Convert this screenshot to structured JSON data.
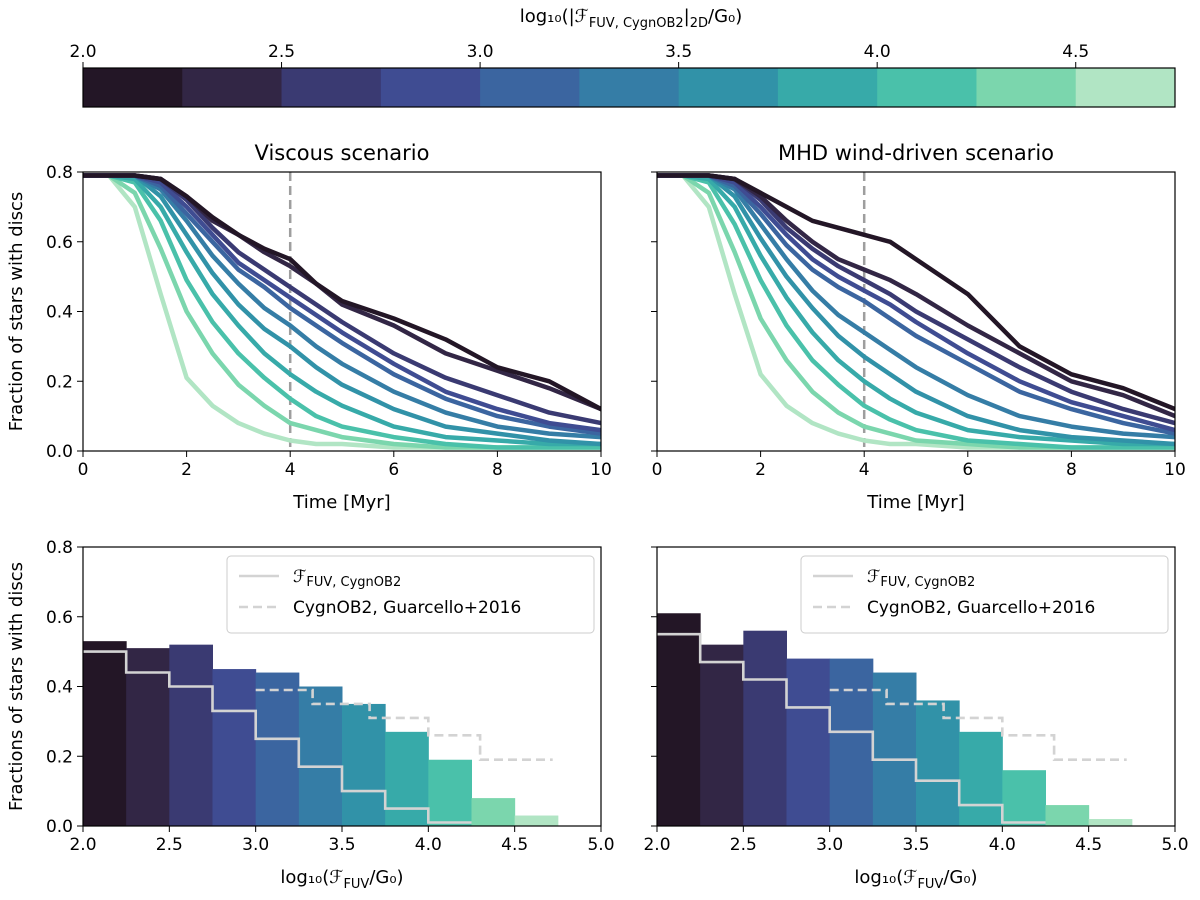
{
  "palette": [
    "#231626",
    "#322645",
    "#3a3a72",
    "#3f4c92",
    "#3b65a0",
    "#357da6",
    "#3192a8",
    "#37aaa9",
    "#4ac1aa",
    "#7bd6ad",
    "#b1e5c4"
  ],
  "colorbar": {
    "label": "log₁₀(|ℱ",
    "label_sub": "FUV, CygnOB2",
    "label_mid": "|",
    "label_sub2": "2D",
    "label_end": "/G₀)",
    "range": [
      2.0,
      4.75
    ],
    "bins": [
      2.0,
      2.25,
      2.5,
      2.75,
      3.0,
      3.25,
      3.5,
      3.75,
      4.0,
      4.25,
      4.5,
      4.75
    ],
    "ticks": [
      "2.0",
      "2.5",
      "3.0",
      "3.5",
      "4.0",
      "4.5"
    ]
  },
  "chart_data": [
    {
      "id": "top-left",
      "type": "line",
      "title": "Viscous scenario",
      "xlabel": "Time [Myr]",
      "ylabel": "Fraction of stars with discs",
      "xlim": [
        0,
        10
      ],
      "ylim": [
        0,
        0.8
      ],
      "xticks": [
        "0",
        "2",
        "4",
        "6",
        "8",
        "10"
      ],
      "yticks": [
        "0.0",
        "0.2",
        "0.4",
        "0.6",
        "0.8"
      ],
      "vline_x": 4,
      "x": [
        0,
        0.5,
        1.0,
        1.5,
        2.0,
        2.5,
        3.0,
        3.5,
        4.0,
        4.5,
        5.0,
        6.0,
        7.0,
        8.0,
        9.0,
        10.0
      ],
      "series": [
        {
          "name": "2.125",
          "values": [
            0.79,
            0.79,
            0.79,
            0.78,
            0.73,
            0.67,
            0.62,
            0.58,
            0.55,
            0.48,
            0.43,
            0.38,
            0.32,
            0.24,
            0.2,
            0.12
          ]
        },
        {
          "name": "2.375",
          "values": [
            0.79,
            0.79,
            0.79,
            0.78,
            0.73,
            0.66,
            0.62,
            0.57,
            0.53,
            0.48,
            0.42,
            0.36,
            0.28,
            0.23,
            0.18,
            0.12
          ]
        },
        {
          "name": "2.625",
          "values": [
            0.79,
            0.79,
            0.79,
            0.78,
            0.72,
            0.64,
            0.57,
            0.52,
            0.47,
            0.42,
            0.37,
            0.28,
            0.21,
            0.16,
            0.11,
            0.08
          ]
        },
        {
          "name": "2.875",
          "values": [
            0.79,
            0.79,
            0.79,
            0.77,
            0.7,
            0.62,
            0.54,
            0.49,
            0.44,
            0.39,
            0.34,
            0.25,
            0.17,
            0.12,
            0.08,
            0.06
          ]
        },
        {
          "name": "3.125",
          "values": [
            0.79,
            0.79,
            0.79,
            0.76,
            0.68,
            0.6,
            0.52,
            0.47,
            0.41,
            0.36,
            0.31,
            0.22,
            0.15,
            0.1,
            0.07,
            0.05
          ]
        },
        {
          "name": "3.375",
          "values": [
            0.79,
            0.79,
            0.79,
            0.75,
            0.66,
            0.56,
            0.48,
            0.41,
            0.36,
            0.3,
            0.25,
            0.17,
            0.11,
            0.07,
            0.05,
            0.04
          ]
        },
        {
          "name": "3.625",
          "values": [
            0.79,
            0.79,
            0.79,
            0.73,
            0.62,
            0.51,
            0.42,
            0.35,
            0.3,
            0.24,
            0.19,
            0.12,
            0.07,
            0.05,
            0.03,
            0.02
          ]
        },
        {
          "name": "3.875",
          "values": [
            0.79,
            0.79,
            0.78,
            0.7,
            0.57,
            0.45,
            0.36,
            0.28,
            0.22,
            0.17,
            0.13,
            0.07,
            0.04,
            0.03,
            0.02,
            0.02
          ]
        },
        {
          "name": "4.125",
          "values": [
            0.79,
            0.79,
            0.77,
            0.66,
            0.49,
            0.37,
            0.28,
            0.21,
            0.15,
            0.1,
            0.07,
            0.04,
            0.02,
            0.01,
            0.01,
            0.01
          ]
        },
        {
          "name": "4.375",
          "values": [
            0.79,
            0.79,
            0.74,
            0.58,
            0.4,
            0.28,
            0.19,
            0.13,
            0.08,
            0.06,
            0.04,
            0.02,
            0.01,
            0.01,
            0.01,
            0.01
          ]
        },
        {
          "name": "4.625",
          "values": [
            0.79,
            0.79,
            0.7,
            0.45,
            0.21,
            0.13,
            0.08,
            0.05,
            0.03,
            0.02,
            0.02,
            0.01,
            0.01,
            0.01,
            0.01,
            0.01
          ]
        }
      ]
    },
    {
      "id": "top-right",
      "type": "line",
      "title": "MHD wind-driven scenario",
      "xlabel": "Time [Myr]",
      "ylabel": "",
      "xlim": [
        0,
        10
      ],
      "ylim": [
        0,
        0.8
      ],
      "xticks": [
        "0",
        "2",
        "4",
        "6",
        "8",
        "10"
      ],
      "yticks": [
        "",
        "",
        "",
        "",
        ""
      ],
      "vline_x": 4,
      "x": [
        0,
        0.5,
        1.0,
        1.5,
        2.0,
        2.5,
        3.0,
        3.5,
        4.0,
        4.5,
        5.0,
        6.0,
        7.0,
        8.0,
        9.0,
        10.0
      ],
      "series": [
        {
          "name": "2.125",
          "values": [
            0.79,
            0.79,
            0.79,
            0.78,
            0.74,
            0.7,
            0.66,
            0.64,
            0.62,
            0.6,
            0.55,
            0.45,
            0.3,
            0.22,
            0.18,
            0.12
          ]
        },
        {
          "name": "2.375",
          "values": [
            0.79,
            0.79,
            0.79,
            0.78,
            0.73,
            0.66,
            0.6,
            0.55,
            0.52,
            0.49,
            0.45,
            0.36,
            0.28,
            0.2,
            0.16,
            0.1
          ]
        },
        {
          "name": "2.625",
          "values": [
            0.79,
            0.79,
            0.79,
            0.78,
            0.72,
            0.64,
            0.58,
            0.53,
            0.49,
            0.45,
            0.4,
            0.32,
            0.24,
            0.17,
            0.12,
            0.08
          ]
        },
        {
          "name": "2.875",
          "values": [
            0.79,
            0.79,
            0.79,
            0.77,
            0.7,
            0.62,
            0.55,
            0.5,
            0.46,
            0.42,
            0.37,
            0.28,
            0.2,
            0.14,
            0.1,
            0.06
          ]
        },
        {
          "name": "3.125",
          "values": [
            0.79,
            0.79,
            0.79,
            0.76,
            0.68,
            0.59,
            0.52,
            0.47,
            0.43,
            0.38,
            0.33,
            0.25,
            0.17,
            0.12,
            0.08,
            0.05
          ]
        },
        {
          "name": "3.375",
          "values": [
            0.79,
            0.79,
            0.79,
            0.75,
            0.65,
            0.55,
            0.46,
            0.39,
            0.34,
            0.29,
            0.24,
            0.16,
            0.1,
            0.07,
            0.05,
            0.04
          ]
        },
        {
          "name": "3.625",
          "values": [
            0.79,
            0.79,
            0.79,
            0.73,
            0.61,
            0.5,
            0.41,
            0.33,
            0.27,
            0.22,
            0.17,
            0.1,
            0.06,
            0.04,
            0.03,
            0.02
          ]
        },
        {
          "name": "3.875",
          "values": [
            0.79,
            0.79,
            0.78,
            0.7,
            0.56,
            0.44,
            0.34,
            0.26,
            0.2,
            0.15,
            0.11,
            0.06,
            0.04,
            0.03,
            0.02,
            0.02
          ]
        },
        {
          "name": "4.125",
          "values": [
            0.79,
            0.79,
            0.77,
            0.65,
            0.49,
            0.36,
            0.26,
            0.19,
            0.13,
            0.09,
            0.06,
            0.03,
            0.02,
            0.01,
            0.01,
            0.01
          ]
        },
        {
          "name": "4.375",
          "values": [
            0.79,
            0.79,
            0.74,
            0.57,
            0.38,
            0.26,
            0.17,
            0.11,
            0.07,
            0.05,
            0.03,
            0.02,
            0.01,
            0.01,
            0.01,
            0.01
          ]
        },
        {
          "name": "4.625",
          "values": [
            0.79,
            0.79,
            0.7,
            0.45,
            0.22,
            0.13,
            0.08,
            0.05,
            0.03,
            0.02,
            0.02,
            0.01,
            0.01,
            0.01,
            0.01,
            0.01
          ]
        }
      ]
    },
    {
      "id": "bottom-left",
      "type": "bar",
      "xlabel": "log₁₀(ℱ",
      "xlabel_sub": "FUV",
      "xlabel_end": "/G₀)",
      "ylabel": "Fractions of stars with discs",
      "xlim": [
        2.0,
        5.0
      ],
      "ylim": [
        0,
        0.8
      ],
      "xticks": [
        "2.0",
        "2.5",
        "3.0",
        "3.5",
        "4.0",
        "4.5",
        "5.0"
      ],
      "yticks": [
        "0.0",
        "0.2",
        "0.4",
        "0.6",
        "0.8"
      ],
      "bin_edges": [
        2.0,
        2.25,
        2.5,
        2.75,
        3.0,
        3.25,
        3.5,
        3.75,
        4.0,
        4.25,
        4.5,
        4.75
      ],
      "values": [
        0.53,
        0.51,
        0.52,
        0.45,
        0.44,
        0.4,
        0.35,
        0.27,
        0.19,
        0.08,
        0.03
      ],
      "step_solid": {
        "edges": [
          2.0,
          2.25,
          2.5,
          2.75,
          3.0,
          3.25,
          3.5,
          3.75,
          4.0,
          4.25
        ],
        "values": [
          0.5,
          0.44,
          0.4,
          0.33,
          0.25,
          0.17,
          0.1,
          0.05,
          0.01
        ]
      },
      "step_dashed": {
        "edges": [
          3.0,
          3.33,
          3.66,
          4.0,
          4.3,
          4.72
        ],
        "values": [
          0.39,
          0.35,
          0.31,
          0.26,
          0.19
        ]
      },
      "legend": [
        {
          "label": "ℱ",
          "label_sub": "FUV, CygnOB2",
          "style": "solid"
        },
        {
          "label": "CygnOB2, Guarcello+2016",
          "style": "dashed"
        }
      ]
    },
    {
      "id": "bottom-right",
      "type": "bar",
      "xlabel": "log₁₀(ℱ",
      "xlabel_sub": "FUV",
      "xlabel_end": "/G₀)",
      "ylabel": "",
      "xlim": [
        2.0,
        5.0
      ],
      "ylim": [
        0,
        0.8
      ],
      "xticks": [
        "2.0",
        "2.5",
        "3.0",
        "3.5",
        "4.0",
        "4.5",
        "5.0"
      ],
      "yticks": [
        "",
        "",
        "",
        "",
        ""
      ],
      "bin_edges": [
        2.0,
        2.25,
        2.5,
        2.75,
        3.0,
        3.25,
        3.5,
        3.75,
        4.0,
        4.25,
        4.5,
        4.75
      ],
      "values": [
        0.61,
        0.52,
        0.56,
        0.48,
        0.48,
        0.44,
        0.36,
        0.27,
        0.16,
        0.06,
        0.02
      ],
      "step_solid": {
        "edges": [
          2.0,
          2.25,
          2.5,
          2.75,
          3.0,
          3.25,
          3.5,
          3.75,
          4.0,
          4.25
        ],
        "values": [
          0.55,
          0.47,
          0.42,
          0.34,
          0.27,
          0.19,
          0.13,
          0.06,
          0.01
        ]
      },
      "step_dashed": {
        "edges": [
          3.0,
          3.33,
          3.66,
          4.0,
          4.3,
          4.72
        ],
        "values": [
          0.39,
          0.35,
          0.31,
          0.26,
          0.19
        ]
      },
      "legend": [
        {
          "label": "ℱ",
          "label_sub": "FUV, CygnOB2",
          "style": "solid"
        },
        {
          "label": "CygnOB2, Guarcello+2016",
          "style": "dashed"
        }
      ]
    }
  ]
}
